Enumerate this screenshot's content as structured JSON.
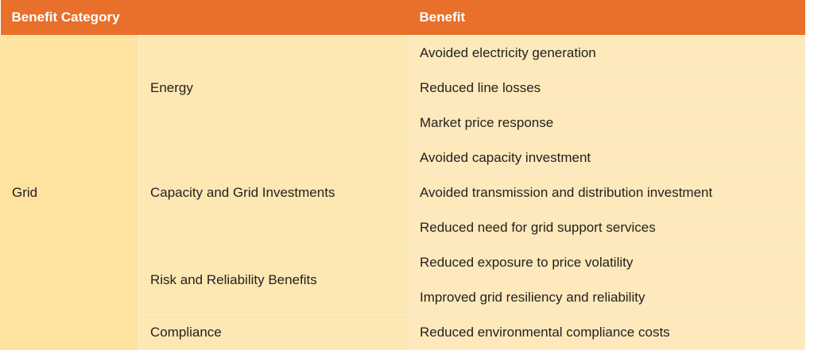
{
  "header": {
    "category_label": "Benefit Category",
    "benefit_label": "Benefit"
  },
  "category": "Grid",
  "groups": [
    {
      "name": "Energy",
      "benefits": [
        "Avoided electricity generation",
        "Reduced line losses",
        "Market price response"
      ]
    },
    {
      "name": "Capacity and Grid Investments",
      "benefits": [
        "Avoided capacity investment",
        "Avoided transmission and distribution investment",
        "Reduced need for grid support services"
      ]
    },
    {
      "name": "Risk and Reliability Benefits",
      "benefits": [
        "Reduced exposure to price volatility",
        "Improved grid resiliency and reliability"
      ]
    },
    {
      "name": "Compliance",
      "benefits": [
        "Reduced environmental compliance costs"
      ]
    }
  ],
  "colors": {
    "header_bg": "#e8702a",
    "grid_bg": "#fde2a0",
    "cell_bg": "#fde9bb"
  }
}
